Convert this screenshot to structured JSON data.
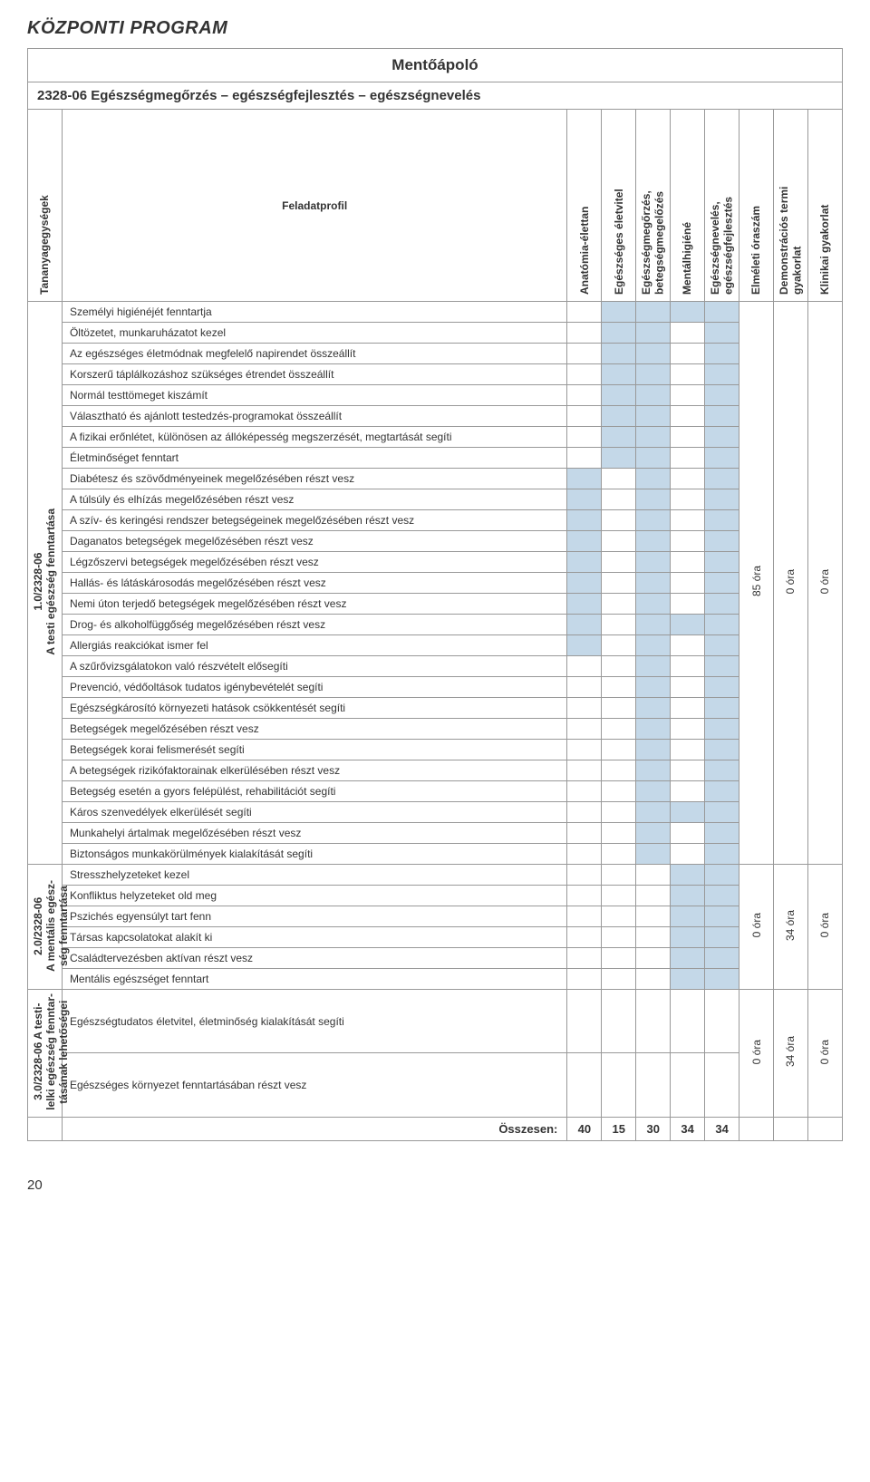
{
  "page_header": "KÖZPONTI PROGRAM",
  "page_number": "20",
  "title": "Mentőápoló",
  "subtitle": "2328-06 Egészségmegőrzés – egészségfejlesztés – egészségnevelés",
  "col_unit_header": "Tananyagegységek",
  "col_task_header": "Feladatprofil",
  "columns": [
    {
      "label": "Anatómia-élettan"
    },
    {
      "label": "Egészséges életvitel"
    },
    {
      "label": "Egészségmegőrzés,\nbetegségmegelőzés"
    },
    {
      "label": "Mentálhigiéné"
    },
    {
      "label": "Egészségnevelés,\negészségfejlesztés"
    },
    {
      "label": "Elméleti óraszám"
    },
    {
      "label": "Demonstrációs termi\ngyakorlat"
    },
    {
      "label": "Klinikai gyakorlat"
    }
  ],
  "colors": {
    "shade": "#c4d8e8",
    "border": "#999999",
    "text": "#333333",
    "background": "#ffffff"
  },
  "units": [
    {
      "id": "u1",
      "label": "1.0/2328-06\nA testi egészség fenntartása",
      "hours": [
        "85 óra",
        "0 óra",
        "0 óra"
      ],
      "rows": [
        {
          "text": "Személyi higiénéjét fenntartja",
          "marks": [
            0,
            1,
            1,
            1,
            1
          ]
        },
        {
          "text": "Öltözetet, munkaruházatot kezel",
          "marks": [
            0,
            1,
            1,
            0,
            1
          ]
        },
        {
          "text": "Az egészséges életmódnak megfelelő napirendet összeállít",
          "marks": [
            0,
            1,
            1,
            0,
            1
          ]
        },
        {
          "text": "Korszerű táplálkozáshoz szükséges étrendet összeállít",
          "marks": [
            0,
            1,
            1,
            0,
            1
          ]
        },
        {
          "text": "Normál testtömeget kiszámít",
          "marks": [
            0,
            1,
            1,
            0,
            1
          ]
        },
        {
          "text": "Választható és ajánlott testedzés-programokat összeállít",
          "marks": [
            0,
            1,
            1,
            0,
            1
          ]
        },
        {
          "text": "A fizikai erőnlétet, különösen az állóképesség megszerzését, megtartását segíti",
          "marks": [
            0,
            1,
            1,
            0,
            1
          ]
        },
        {
          "text": "Életminőséget fenntart",
          "marks": [
            0,
            1,
            1,
            0,
            1
          ]
        },
        {
          "text": "Diabétesz és szövődményeinek megelőzésében részt vesz",
          "marks": [
            1,
            0,
            1,
            0,
            1
          ]
        },
        {
          "text": "A túlsúly és elhízás megelőzésében részt vesz",
          "marks": [
            1,
            0,
            1,
            0,
            1
          ]
        },
        {
          "text": "A szív- és keringési rendszer betegségeinek megelőzésében részt vesz",
          "marks": [
            1,
            0,
            1,
            0,
            1
          ]
        },
        {
          "text": "Daganatos betegségek megelőzésében részt vesz",
          "marks": [
            1,
            0,
            1,
            0,
            1
          ]
        },
        {
          "text": "Légzőszervi betegségek megelőzésében részt vesz",
          "marks": [
            1,
            0,
            1,
            0,
            1
          ]
        },
        {
          "text": "Hallás- és látáskárosodás megelőzésében részt vesz",
          "marks": [
            1,
            0,
            1,
            0,
            1
          ]
        },
        {
          "text": "Nemi úton terjedő betegségek megelőzésében részt vesz",
          "marks": [
            1,
            0,
            1,
            0,
            1
          ]
        },
        {
          "text": "Drog- és alkoholfüggőség megelőzésében részt vesz",
          "marks": [
            1,
            0,
            1,
            1,
            1
          ]
        },
        {
          "text": "Allergiás reakciókat ismer fel",
          "marks": [
            1,
            0,
            1,
            0,
            1
          ]
        },
        {
          "text": "A szűrővizsgálatokon való részvételt elősegíti",
          "marks": [
            0,
            0,
            1,
            0,
            1
          ]
        },
        {
          "text": "Prevenció, védőoltások tudatos igénybevételét segíti",
          "marks": [
            0,
            0,
            1,
            0,
            1
          ]
        },
        {
          "text": "Egészségkárosító környezeti hatások csökkentését segíti",
          "marks": [
            0,
            0,
            1,
            0,
            1
          ]
        },
        {
          "text": "Betegségek megelőzésében részt vesz",
          "marks": [
            0,
            0,
            1,
            0,
            1
          ]
        },
        {
          "text": "Betegségek korai felismerését segíti",
          "marks": [
            0,
            0,
            1,
            0,
            1
          ]
        },
        {
          "text": "A betegségek rizikófaktorainak elkerülésében részt vesz",
          "marks": [
            0,
            0,
            1,
            0,
            1
          ]
        },
        {
          "text": "Betegség esetén a gyors felépülést, rehabilitációt segíti",
          "marks": [
            0,
            0,
            1,
            0,
            1
          ]
        },
        {
          "text": "Káros szenvedélyek elkerülését segíti",
          "marks": [
            0,
            0,
            1,
            1,
            1
          ]
        },
        {
          "text": "Munkahelyi ártalmak megelőzésében részt vesz",
          "marks": [
            0,
            0,
            1,
            0,
            1
          ]
        },
        {
          "text": "Biztonságos munkakörülmények kialakítását segíti",
          "marks": [
            0,
            0,
            1,
            0,
            1
          ]
        }
      ]
    },
    {
      "id": "u2",
      "label": "2.0/2328-06\nA mentális egész-\nség fenntartása",
      "hours": [
        "0 óra",
        "34 óra",
        "0 óra"
      ],
      "rows": [
        {
          "text": "Stresszhelyzeteket kezel",
          "marks": [
            0,
            0,
            0,
            1,
            1
          ]
        },
        {
          "text": "Konfliktus helyzeteket old meg",
          "marks": [
            0,
            0,
            0,
            1,
            1
          ]
        },
        {
          "text": "Pszichés egyensúlyt tart fenn",
          "marks": [
            0,
            0,
            0,
            1,
            1
          ]
        },
        {
          "text": "Társas kapcsolatokat alakít ki",
          "marks": [
            0,
            0,
            0,
            1,
            1
          ]
        },
        {
          "text": "Családtervezésben aktívan részt vesz",
          "marks": [
            0,
            0,
            0,
            1,
            1
          ]
        },
        {
          "text": "Mentális egészséget fenntart",
          "marks": [
            0,
            0,
            0,
            1,
            1
          ]
        }
      ]
    },
    {
      "id": "u3",
      "label": "3.0/2328-06 A testi-\nlelki egészség fenntar-\ntásának lehetőségei",
      "hours": [
        "0 óra",
        "34 óra",
        "0 óra"
      ],
      "rows": [
        {
          "text": "Egészségtudatos életvitel, életminőség kialakítását segíti",
          "marks": [
            0,
            0,
            0,
            0,
            0
          ],
          "tall": true
        },
        {
          "text": "Egészséges környezet fenntartásában részt vesz",
          "marks": [
            0,
            0,
            0,
            0,
            0
          ],
          "tall": true
        }
      ]
    }
  ],
  "totals": {
    "label": "Összesen:",
    "values": [
      "40",
      "15",
      "30",
      "34",
      "34",
      "",
      "",
      ""
    ]
  }
}
